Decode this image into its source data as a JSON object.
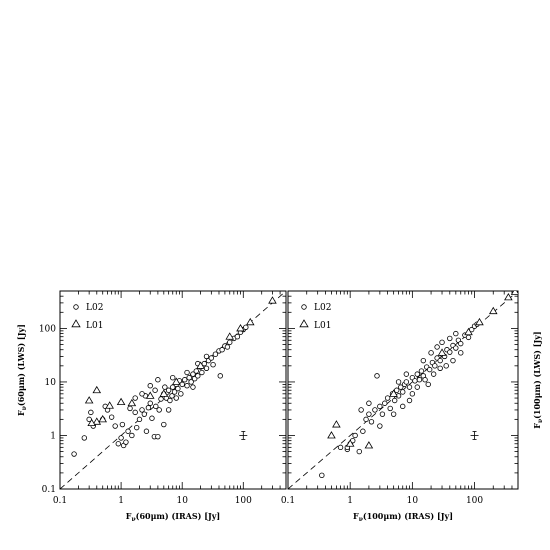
{
  "chart_data": [
    {
      "type": "scatter",
      "xlabel": "Fν(60μm) (IRAS) [Jy]",
      "ylabel": "Fν(60μm) (LWS) [Jy]",
      "x_scale": "log",
      "y_scale": "log",
      "xlim": [
        0.1,
        500
      ],
      "ylim": [
        0.1,
        500
      ],
      "xticks": [
        "0.1",
        "1",
        "10",
        "100"
      ],
      "yticks": [
        "0.1",
        "1",
        "10",
        "100"
      ],
      "legend_position": "top-left",
      "reference_line": "y = x (dashed)",
      "error_bar_marker": {
        "x": 100,
        "y": 1.0
      },
      "series": [
        {
          "name": "L02",
          "marker": "circle",
          "points": [
            [
              0.17,
              0.45
            ],
            [
              0.25,
              0.9
            ],
            [
              0.3,
              2.0
            ],
            [
              0.32,
              2.7
            ],
            [
              0.35,
              1.5
            ],
            [
              0.5,
              2.0
            ],
            [
              0.55,
              3.5
            ],
            [
              0.6,
              3.0
            ],
            [
              0.7,
              2.2
            ],
            [
              0.8,
              1.5
            ],
            [
              0.9,
              0.7
            ],
            [
              1.0,
              0.9
            ],
            [
              1.05,
              1.6
            ],
            [
              1.1,
              0.65
            ],
            [
              1.2,
              0.75
            ],
            [
              1.3,
              1.2
            ],
            [
              1.4,
              3.2
            ],
            [
              1.5,
              1.0
            ],
            [
              1.7,
              2.7
            ],
            [
              1.8,
              1.4
            ],
            [
              2.0,
              2.0
            ],
            [
              2.2,
              3.0
            ],
            [
              2.4,
              2.5
            ],
            [
              2.6,
              1.2
            ],
            [
              2.8,
              3.3
            ],
            [
              3.0,
              4.0
            ],
            [
              3.2,
              2.1
            ],
            [
              3.5,
              0.95
            ],
            [
              3.7,
              3.5
            ],
            [
              4.0,
              0.95
            ],
            [
              4.2,
              3.0
            ],
            [
              4.5,
              4.8
            ],
            [
              5.0,
              6.0
            ],
            [
              5.0,
              1.6
            ],
            [
              5.5,
              5.0
            ],
            [
              6.0,
              7.0
            ],
            [
              6.3,
              4.5
            ],
            [
              6.8,
              5.5
            ],
            [
              7.0,
              8.0
            ],
            [
              7.5,
              6.5
            ],
            [
              8.0,
              9.0
            ],
            [
              8.5,
              7.5
            ],
            [
              9.0,
              10.5
            ],
            [
              9.5,
              6.0
            ],
            [
              10.0,
              9.0
            ],
            [
              11.0,
              11.0
            ],
            [
              12.0,
              8.5
            ],
            [
              13.0,
              12.0
            ],
            [
              14.0,
              10.0
            ],
            [
              15.0,
              14.0
            ],
            [
              16.0,
              11.5
            ],
            [
              17.0,
              16.0
            ],
            [
              18.0,
              13.0
            ],
            [
              20.0,
              19.0
            ],
            [
              21.0,
              15.0
            ],
            [
              23.0,
              22.0
            ],
            [
              25.0,
              18.0
            ],
            [
              27.0,
              25.0
            ],
            [
              30.0,
              28.0
            ],
            [
              32.0,
              21.0
            ],
            [
              35.0,
              33.0
            ],
            [
              40.0,
              38.0
            ],
            [
              42.0,
              13.0
            ],
            [
              45.0,
              40.0
            ],
            [
              50.0,
              47.0
            ],
            [
              55.0,
              45.0
            ],
            [
              60.0,
              55.0
            ],
            [
              70.0,
              65.0
            ],
            [
              80.0,
              70.0
            ],
            [
              90.0,
              85.0
            ],
            [
              100.0,
              95.0
            ],
            [
              110.0,
              105.0
            ],
            [
              4.0,
              11.0
            ],
            [
              3.6,
              7.0
            ],
            [
              6.0,
              3.0
            ],
            [
              2.5,
              5.5
            ],
            [
              7.0,
              12.0
            ],
            [
              5.2,
              8.0
            ],
            [
              8.0,
              5.0
            ],
            [
              12.0,
              15.0
            ],
            [
              18.0,
              22.0
            ],
            [
              25.0,
              30.0
            ],
            [
              15.0,
              8.0
            ],
            [
              1.7,
              5.0
            ],
            [
              2.2,
              6.0
            ],
            [
              3.0,
              8.5
            ]
          ]
        },
        {
          "name": "L01",
          "marker": "triangle",
          "points": [
            [
              0.4,
              7.0
            ],
            [
              0.3,
              4.5
            ],
            [
              0.4,
              1.8
            ],
            [
              0.33,
              1.7
            ],
            [
              0.5,
              2.0
            ],
            [
              0.65,
              3.6
            ],
            [
              1.0,
              4.2
            ],
            [
              1.5,
              4.0
            ],
            [
              3.0,
              5.5
            ],
            [
              5.0,
              6.0
            ],
            [
              8.0,
              10.0
            ],
            [
              20.0,
              20.0
            ],
            [
              60.0,
              70.0
            ],
            [
              90.0,
              100.0
            ],
            [
              130.0,
              130.0
            ],
            [
              300.0,
              330.0
            ]
          ]
        }
      ]
    },
    {
      "type": "scatter",
      "xlabel": "Fν(100μm) (IRAS) [Jy]",
      "ylabel": "Fν(100μm) (LWS) [Jy]",
      "x_scale": "log",
      "y_scale": "log",
      "xlim": [
        0.1,
        500
      ],
      "ylim": [
        0.1,
        500
      ],
      "xticks": [
        "0.1",
        "1",
        "10",
        "100"
      ],
      "yticks": [],
      "legend_position": "top-left",
      "reference_line": "y = x (dashed)",
      "error_bar_marker": {
        "x": 100,
        "y": 1.0
      },
      "series": [
        {
          "name": "L02",
          "marker": "circle",
          "points": [
            [
              0.35,
              0.18
            ],
            [
              0.7,
              0.6
            ],
            [
              0.9,
              0.55
            ],
            [
              1.0,
              0.7
            ],
            [
              1.2,
              1.0
            ],
            [
              1.4,
              0.5
            ],
            [
              1.6,
              1.2
            ],
            [
              1.8,
              2.0
            ],
            [
              2.0,
              2.5
            ],
            [
              2.2,
              1.8
            ],
            [
              2.5,
              3.0
            ],
            [
              2.7,
              13.0
            ],
            [
              3.0,
              3.5
            ],
            [
              3.3,
              2.5
            ],
            [
              3.6,
              4.0
            ],
            [
              4.0,
              5.0
            ],
            [
              4.4,
              3.2
            ],
            [
              4.8,
              6.0
            ],
            [
              5.2,
              4.5
            ],
            [
              5.6,
              7.0
            ],
            [
              6.0,
              5.5
            ],
            [
              6.5,
              8.0
            ],
            [
              7.0,
              6.5
            ],
            [
              7.5,
              9.0
            ],
            [
              8.0,
              10.0
            ],
            [
              9.0,
              8.0
            ],
            [
              10.0,
              12.0
            ],
            [
              11.0,
              10.5
            ],
            [
              12.0,
              14.0
            ],
            [
              13.0,
              11.0
            ],
            [
              14.0,
              16.0
            ],
            [
              15.0,
              13.0
            ],
            [
              17.0,
              19.0
            ],
            [
              19.0,
              17.0
            ],
            [
              21.0,
              23.0
            ],
            [
              23.0,
              20.0
            ],
            [
              25.0,
              28.0
            ],
            [
              28.0,
              25.0
            ],
            [
              30.0,
              33.0
            ],
            [
              33.0,
              30.0
            ],
            [
              36.0,
              40.0
            ],
            [
              40.0,
              36.0
            ],
            [
              45.0,
              48.0
            ],
            [
              50.0,
              43.0
            ],
            [
              55.0,
              60.0
            ],
            [
              60.0,
              52.0
            ],
            [
              70.0,
              75.0
            ],
            [
              80.0,
              68.0
            ],
            [
              90.0,
              95.0
            ],
            [
              100.0,
              110.0
            ],
            [
              110.0,
              120.0
            ],
            [
              20.0,
              35.0
            ],
            [
              25.0,
              45.0
            ],
            [
              30.0,
              55.0
            ],
            [
              15.0,
              25.0
            ],
            [
              35.0,
              20.0
            ],
            [
              45.0,
              25.0
            ],
            [
              60.0,
              35.0
            ],
            [
              10.0,
              6.0
            ],
            [
              8.0,
              14.0
            ],
            [
              6.0,
              10.0
            ],
            [
              12.0,
              8.0
            ],
            [
              16.0,
              11.0
            ],
            [
              40.0,
              65.0
            ],
            [
              50.0,
              80.0
            ],
            [
              3.0,
              1.5
            ],
            [
              5.0,
              2.5
            ],
            [
              7.0,
              3.5
            ],
            [
              2.0,
              4.0
            ],
            [
              1.5,
              3.0
            ],
            [
              9.0,
              4.5
            ],
            [
              18.0,
              9.0
            ],
            [
              22.0,
              14.0
            ],
            [
              28.0,
              18.0
            ],
            [
              0.9,
              0.6
            ],
            [
              1.1,
              0.8
            ]
          ]
        },
        {
          "name": "L01",
          "marker": "triangle",
          "points": [
            [
              0.5,
              1.0
            ],
            [
              0.6,
              1.6
            ],
            [
              1.0,
              0.7
            ],
            [
              2.0,
              0.65
            ],
            [
              5.0,
              6.0
            ],
            [
              30.0,
              35.0
            ],
            [
              80.0,
              85.0
            ],
            [
              120.0,
              130.0
            ],
            [
              200.0,
              210.0
            ],
            [
              350.0,
              380.0
            ],
            [
              450.0,
              480.0
            ]
          ]
        }
      ]
    }
  ]
}
